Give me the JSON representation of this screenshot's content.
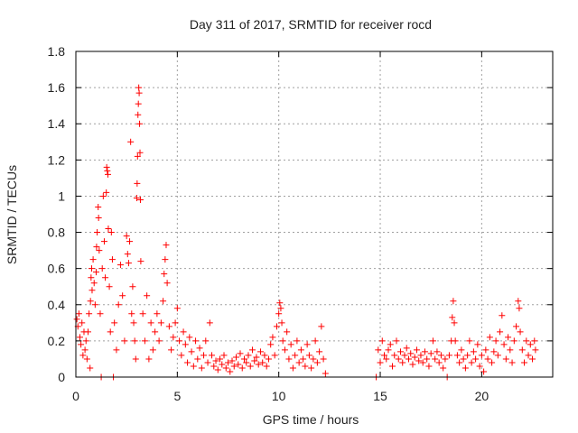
{
  "chart_data": {
    "type": "scatter",
    "title": "Day 311 of 2017, SRMTID for receiver rocd",
    "xlabel": "GPS time / hours",
    "ylabel": "SRMTID / TECUs",
    "xlim": [
      0,
      23.5
    ],
    "ylim": [
      0,
      1.8
    ],
    "xticks": [
      0,
      5,
      10,
      15,
      20
    ],
    "yticks": [
      0,
      0.2,
      0.4,
      0.6,
      0.8,
      1,
      1.2,
      1.4,
      1.6,
      1.8
    ],
    "ytick_labels": [
      "0",
      "0.2",
      "0.4",
      "0.6",
      "0.8",
      "1",
      "1.2",
      "1.4",
      "1.6",
      "1.8"
    ],
    "grid": true,
    "marker": "+",
    "color": "#ff0000",
    "series": [
      {
        "name": "SRMTID",
        "points": [
          [
            0.05,
            0.32
          ],
          [
            0.1,
            0.28
          ],
          [
            0.15,
            0.35
          ],
          [
            0.2,
            0.22
          ],
          [
            0.25,
            0.18
          ],
          [
            0.3,
            0.3
          ],
          [
            0.35,
            0.12
          ],
          [
            0.4,
            0.25
          ],
          [
            0.45,
            0.15
          ],
          [
            0.5,
            0.2
          ],
          [
            0.55,
            0.1
          ],
          [
            0.6,
            0.25
          ],
          [
            0.65,
            0.35
          ],
          [
            0.7,
            0.05
          ],
          [
            0.72,
            0.42
          ],
          [
            0.75,
            0.55
          ],
          [
            0.78,
            0.6
          ],
          [
            0.8,
            0.48
          ],
          [
            0.85,
            0.65
          ],
          [
            0.9,
            0.52
          ],
          [
            0.95,
            0.4
          ],
          [
            1.0,
            0.58
          ],
          [
            1.02,
            0.72
          ],
          [
            1.05,
            0.8
          ],
          [
            1.1,
            0.94
          ],
          [
            1.12,
            0.88
          ],
          [
            1.15,
            0.7
          ],
          [
            1.2,
            0.35
          ],
          [
            1.25,
            0.0
          ],
          [
            1.3,
            0.6
          ],
          [
            1.35,
            1.0
          ],
          [
            1.4,
            0.75
          ],
          [
            1.45,
            0.55
          ],
          [
            1.5,
            1.02
          ],
          [
            1.52,
            1.16
          ],
          [
            1.55,
            1.14
          ],
          [
            1.58,
            1.12
          ],
          [
            1.6,
            0.82
          ],
          [
            1.65,
            0.5
          ],
          [
            1.7,
            0.25
          ],
          [
            1.75,
            0.8
          ],
          [
            1.8,
            0.65
          ],
          [
            1.85,
            0.0
          ],
          [
            1.9,
            0.3
          ],
          [
            2.0,
            0.15
          ],
          [
            2.1,
            0.4
          ],
          [
            2.2,
            0.62
          ],
          [
            2.3,
            0.45
          ],
          [
            2.4,
            0.2
          ],
          [
            2.5,
            0.78
          ],
          [
            2.55,
            0.68
          ],
          [
            2.6,
            0.63
          ],
          [
            2.65,
            0.75
          ],
          [
            2.7,
            1.3
          ],
          [
            2.75,
            0.35
          ],
          [
            2.8,
            0.5
          ],
          [
            2.85,
            0.3
          ],
          [
            2.9,
            0.2
          ],
          [
            2.95,
            0.1
          ],
          [
            3.0,
            0.99
          ],
          [
            3.02,
            1.07
          ],
          [
            3.04,
            1.22
          ],
          [
            3.06,
            1.45
          ],
          [
            3.08,
            1.51
          ],
          [
            3.1,
            1.6
          ],
          [
            3.12,
            1.57
          ],
          [
            3.14,
            1.4
          ],
          [
            3.16,
            1.24
          ],
          [
            3.18,
            0.98
          ],
          [
            3.2,
            0.64
          ],
          [
            3.3,
            0.35
          ],
          [
            3.4,
            0.2
          ],
          [
            3.5,
            0.45
          ],
          [
            3.6,
            0.1
          ],
          [
            3.7,
            0.3
          ],
          [
            3.8,
            0.15
          ],
          [
            3.9,
            0.25
          ],
          [
            4.0,
            0.35
          ],
          [
            4.1,
            0.2
          ],
          [
            4.2,
            0.3
          ],
          [
            4.3,
            0.42
          ],
          [
            4.35,
            0.57
          ],
          [
            4.4,
            0.65
          ],
          [
            4.45,
            0.73
          ],
          [
            4.5,
            0.52
          ],
          [
            4.6,
            0.28
          ],
          [
            4.7,
            0.15
          ],
          [
            4.8,
            0.22
          ],
          [
            4.9,
            0.3
          ],
          [
            5.0,
            0.38
          ],
          [
            5.1,
            0.2
          ],
          [
            5.2,
            0.12
          ],
          [
            5.3,
            0.25
          ],
          [
            5.4,
            0.18
          ],
          [
            5.5,
            0.08
          ],
          [
            5.6,
            0.22
          ],
          [
            5.7,
            0.14
          ],
          [
            5.8,
            0.06
          ],
          [
            5.9,
            0.2
          ],
          [
            6.0,
            0.1
          ],
          [
            6.1,
            0.16
          ],
          [
            6.2,
            0.05
          ],
          [
            6.3,
            0.12
          ],
          [
            6.4,
            0.2
          ],
          [
            6.5,
            0.08
          ],
          [
            6.6,
            0.3
          ],
          [
            6.7,
            0.12
          ],
          [
            6.8,
            0.06
          ],
          [
            6.9,
            0.09
          ],
          [
            7.0,
            0.04
          ],
          [
            7.1,
            0.1
          ],
          [
            7.2,
            0.07
          ],
          [
            7.3,
            0.12
          ],
          [
            7.4,
            0.05
          ],
          [
            7.5,
            0.08
          ],
          [
            7.6,
            0.03
          ],
          [
            7.7,
            0.09
          ],
          [
            7.8,
            0.06
          ],
          [
            7.9,
            0.11
          ],
          [
            8.0,
            0.07
          ],
          [
            8.1,
            0.13
          ],
          [
            8.2,
            0.05
          ],
          [
            8.3,
            0.1
          ],
          [
            8.4,
            0.08
          ],
          [
            8.5,
            0.12
          ],
          [
            8.6,
            0.06
          ],
          [
            8.7,
            0.15
          ],
          [
            8.8,
            0.09
          ],
          [
            8.9,
            0.11
          ],
          [
            9.0,
            0.07
          ],
          [
            9.1,
            0.14
          ],
          [
            9.2,
            0.08
          ],
          [
            9.3,
            0.12
          ],
          [
            9.4,
            0.06
          ],
          [
            9.5,
            0.1
          ],
          [
            9.6,
            0.18
          ],
          [
            9.7,
            0.22
          ],
          [
            9.8,
            0.12
          ],
          [
            9.9,
            0.28
          ],
          [
            10.0,
            0.35
          ],
          [
            10.05,
            0.41
          ],
          [
            10.1,
            0.38
          ],
          [
            10.15,
            0.3
          ],
          [
            10.2,
            0.2
          ],
          [
            10.3,
            0.15
          ],
          [
            10.4,
            0.25
          ],
          [
            10.5,
            0.1
          ],
          [
            10.6,
            0.18
          ],
          [
            10.7,
            0.05
          ],
          [
            10.8,
            0.12
          ],
          [
            10.9,
            0.2
          ],
          [
            11.0,
            0.08
          ],
          [
            11.1,
            0.15
          ],
          [
            11.2,
            0.1
          ],
          [
            11.3,
            0.06
          ],
          [
            11.4,
            0.18
          ],
          [
            11.5,
            0.12
          ],
          [
            11.6,
            0.05
          ],
          [
            11.7,
            0.1
          ],
          [
            11.8,
            0.2
          ],
          [
            11.9,
            0.08
          ],
          [
            12.0,
            0.14
          ],
          [
            12.1,
            0.28
          ],
          [
            12.2,
            0.1
          ],
          [
            12.3,
            0.02
          ],
          [
            14.8,
            0.0
          ],
          [
            14.9,
            0.15
          ],
          [
            15.0,
            0.08
          ],
          [
            15.1,
            0.2
          ],
          [
            15.2,
            0.12
          ],
          [
            15.3,
            0.1
          ],
          [
            15.4,
            0.15
          ],
          [
            15.5,
            0.18
          ],
          [
            15.6,
            0.06
          ],
          [
            15.7,
            0.12
          ],
          [
            15.8,
            0.2
          ],
          [
            15.9,
            0.1
          ],
          [
            16.0,
            0.14
          ],
          [
            16.1,
            0.08
          ],
          [
            16.2,
            0.12
          ],
          [
            16.3,
            0.16
          ],
          [
            16.4,
            0.1
          ],
          [
            16.5,
            0.13
          ],
          [
            16.6,
            0.07
          ],
          [
            16.7,
            0.11
          ],
          [
            16.8,
            0.15
          ],
          [
            16.9,
            0.09
          ],
          [
            17.0,
            0.12
          ],
          [
            17.1,
            0.08
          ],
          [
            17.2,
            0.14
          ],
          [
            17.3,
            0.1
          ],
          [
            17.4,
            0.06
          ],
          [
            17.5,
            0.13
          ],
          [
            17.6,
            0.2
          ],
          [
            17.7,
            0.1
          ],
          [
            17.8,
            0.14
          ],
          [
            17.9,
            0.08
          ],
          [
            18.0,
            0.12
          ],
          [
            18.1,
            0.05
          ],
          [
            18.2,
            0.1
          ],
          [
            18.3,
            0.0
          ],
          [
            18.4,
            0.12
          ],
          [
            18.5,
            0.2
          ],
          [
            18.55,
            0.33
          ],
          [
            18.6,
            0.42
          ],
          [
            18.65,
            0.3
          ],
          [
            18.7,
            0.2
          ],
          [
            18.8,
            0.12
          ],
          [
            18.9,
            0.08
          ],
          [
            19.0,
            0.15
          ],
          [
            19.1,
            0.1
          ],
          [
            19.2,
            0.05
          ],
          [
            19.3,
            0.12
          ],
          [
            19.4,
            0.2
          ],
          [
            19.5,
            0.08
          ],
          [
            19.6,
            0.14
          ],
          [
            19.7,
            0.1
          ],
          [
            19.8,
            0.18
          ],
          [
            19.9,
            0.06
          ],
          [
            20.0,
            0.12
          ],
          [
            20.1,
            0.03
          ],
          [
            20.2,
            0.15
          ],
          [
            20.3,
            0.1
          ],
          [
            20.4,
            0.22
          ],
          [
            20.5,
            0.08
          ],
          [
            20.6,
            0.14
          ],
          [
            20.7,
            0.2
          ],
          [
            20.8,
            0.12
          ],
          [
            20.9,
            0.25
          ],
          [
            21.0,
            0.34
          ],
          [
            21.1,
            0.18
          ],
          [
            21.2,
            0.1
          ],
          [
            21.3,
            0.22
          ],
          [
            21.4,
            0.15
          ],
          [
            21.5,
            0.08
          ],
          [
            21.6,
            0.2
          ],
          [
            21.7,
            0.28
          ],
          [
            21.8,
            0.42
          ],
          [
            21.85,
            0.38
          ],
          [
            21.9,
            0.25
          ],
          [
            22.0,
            0.15
          ],
          [
            22.1,
            0.08
          ],
          [
            22.2,
            0.2
          ],
          [
            22.3,
            0.12
          ],
          [
            22.4,
            0.18
          ],
          [
            22.5,
            0.1
          ],
          [
            22.6,
            0.2
          ],
          [
            22.65,
            0.15
          ]
        ]
      }
    ]
  }
}
